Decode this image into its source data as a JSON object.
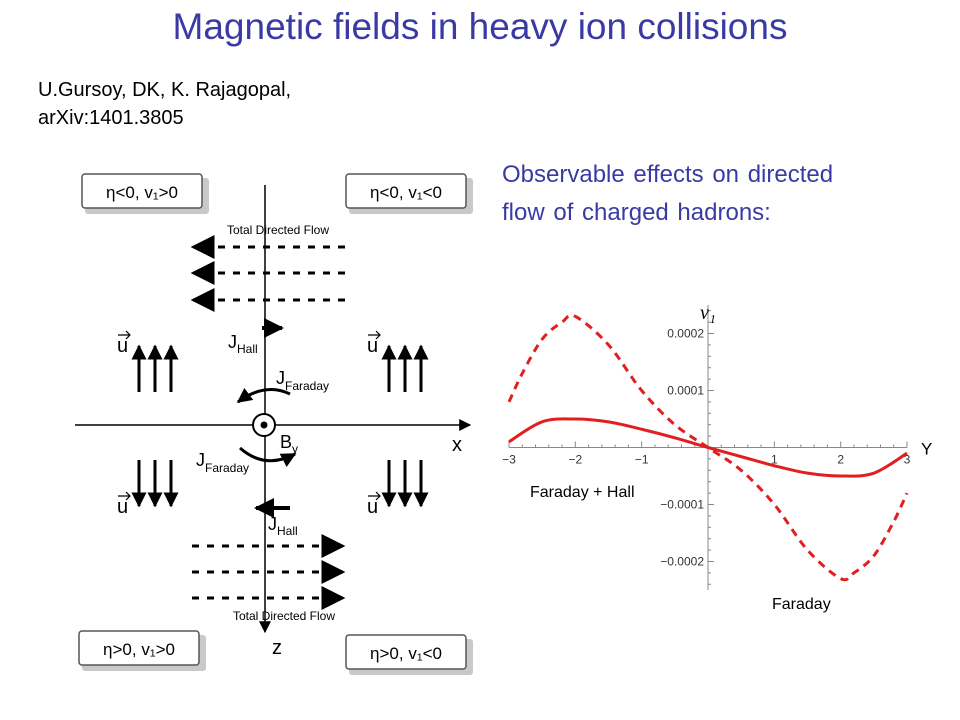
{
  "title": "Magnetic fields in heavy ion collisions",
  "authors": {
    "line1": "U.Gursoy, DK, K. Rajagopal,",
    "line2": "arXiv:1401.3805"
  },
  "observable": {
    "line1": "Observable effects on directed",
    "line2": "flow of charged hadrons:"
  },
  "diagram": {
    "box_top_left": "η<0, v₁>0",
    "box_top_right": "η<0, v₁<0",
    "box_bottom_left": "η>0, v₁>0",
    "box_bottom_right": "η>0, v₁<0",
    "total_flow_top": "Total Directed Flow",
    "total_flow_bottom": "Total Directed Flow",
    "u_label": "u",
    "j_hall": "J",
    "j_hall_sub": "Hall",
    "j_faraday": "J",
    "j_faraday_sub": "Faraday",
    "b_field": "B",
    "b_field_sub": "y",
    "x_axis": "x",
    "z_axis": "z"
  },
  "chart_data": {
    "type": "line",
    "xlabel": "Y",
    "ylabel": "v₁",
    "xlim": [
      -3,
      3
    ],
    "ylim": [
      -0.00025,
      0.00025
    ],
    "x_ticks": [
      -3,
      -2,
      -1,
      1,
      2,
      3
    ],
    "x_tick_labels": [
      "−3",
      "−2",
      "−1",
      "1",
      "2",
      "3"
    ],
    "y_ticks": [
      0.0002,
      0.0001,
      -0.0001,
      -0.0002
    ],
    "y_tick_labels": [
      "0.0002",
      "0.0001",
      "−0.0001",
      "−0.0002"
    ],
    "series": [
      {
        "name": "Faraday + Hall",
        "style": "solid",
        "color": "#e02020",
        "x": [
          -3,
          -2.5,
          -2,
          -1.5,
          -1,
          -0.5,
          0,
          0.5,
          1,
          1.5,
          2,
          2.5,
          3
        ],
        "y": [
          1e-05,
          4.5e-05,
          5e-05,
          4.5e-05,
          3.2e-05,
          1.7e-05,
          0,
          -1.6e-05,
          -3.2e-05,
          -4.5e-05,
          -5e-05,
          -4.5e-05,
          -1e-05
        ]
      },
      {
        "name": "Faraday",
        "style": "dashed",
        "color": "#e02020",
        "x": [
          -3,
          -2.8,
          -2.5,
          -2.2,
          -2,
          -1.5,
          -1,
          -0.5,
          0,
          0.5,
          1,
          1.5,
          2,
          2.2,
          2.5,
          2.8,
          3
        ],
        "y": [
          8e-05,
          0.00013,
          0.00019,
          0.00022,
          0.00023,
          0.00018,
          0.0001,
          4e-05,
          0,
          -4e-05,
          -0.0001,
          -0.00018,
          -0.00023,
          -0.00022,
          -0.00019,
          -0.00013,
          -8e-05
        ]
      }
    ]
  }
}
